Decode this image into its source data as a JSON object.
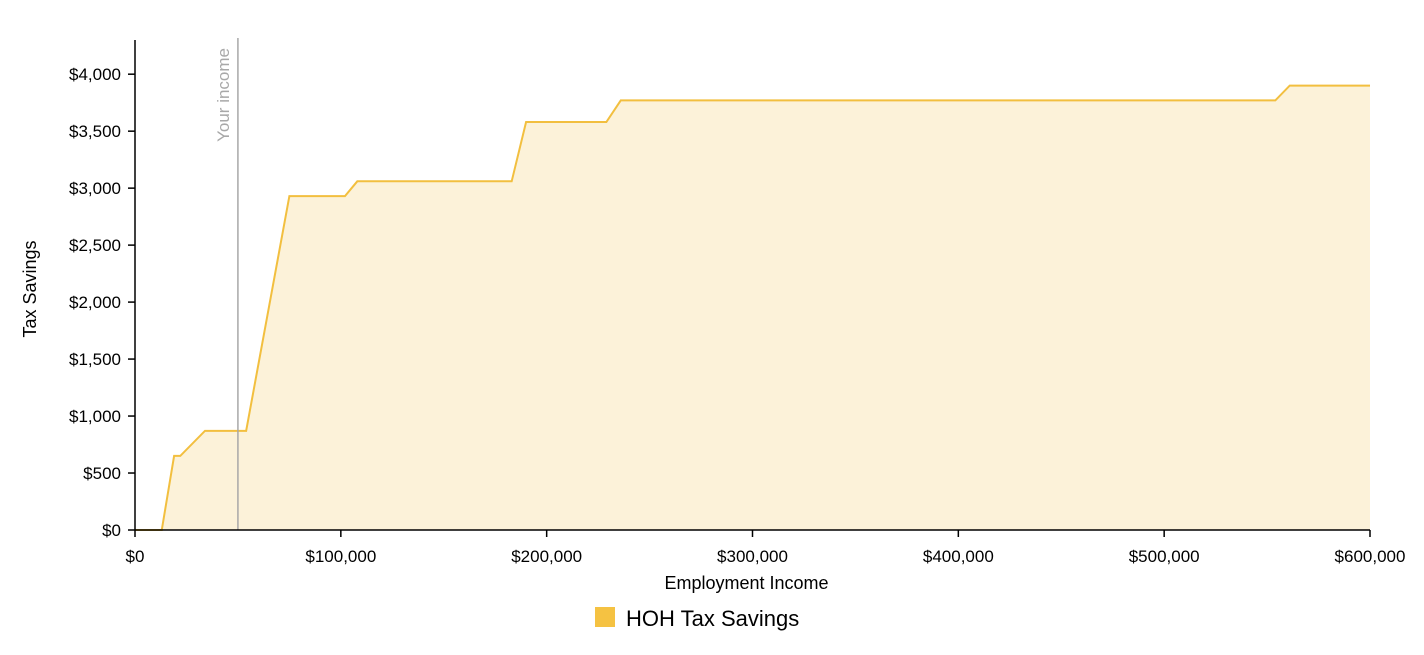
{
  "colors": {
    "series_line": "#f2bf3f",
    "series_fill": "#fcf2d9",
    "legend_swatch": "#f5c242",
    "axis": "#000000",
    "marker_line": "#a8a8a8"
  },
  "chart_data": {
    "type": "area",
    "title": "",
    "xlabel": "Employment Income",
    "ylabel": "Tax Savings",
    "xlim": [
      0,
      600000
    ],
    "ylim": [
      0,
      4300
    ],
    "grid": false,
    "legend_position": "bottom-center",
    "x_ticks": [
      0,
      100000,
      200000,
      300000,
      400000,
      500000,
      600000
    ],
    "x_tick_labels": [
      "$0",
      "$100,000",
      "$200,000",
      "$300,000",
      "$400,000",
      "$500,000",
      "$600,000"
    ],
    "y_ticks": [
      0,
      500,
      1000,
      1500,
      2000,
      2500,
      3000,
      3500,
      4000
    ],
    "y_tick_labels": [
      "$0",
      "$500",
      "$1,000",
      "$1,500",
      "$2,000",
      "$2,500",
      "$3,000",
      "$3,500",
      "$4,000"
    ],
    "series": [
      {
        "name": "HOH Tax Savings",
        "x": [
          0,
          13000,
          19000,
          22000,
          34000,
          54000,
          75000,
          102000,
          108000,
          183000,
          190000,
          229000,
          236000,
          554000,
          561000,
          600000
        ],
        "y": [
          0,
          0,
          650,
          650,
          870,
          870,
          2930,
          2930,
          3060,
          3060,
          3580,
          3580,
          3770,
          3770,
          3900,
          3900
        ]
      }
    ],
    "annotations": [
      {
        "type": "vertical-line",
        "x": 50000,
        "label": "Your income"
      }
    ]
  }
}
